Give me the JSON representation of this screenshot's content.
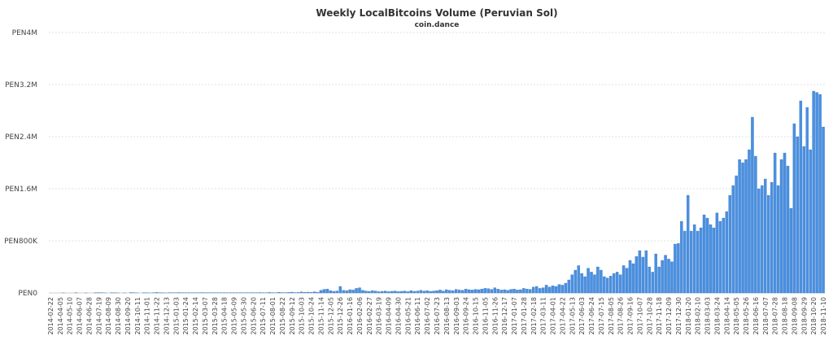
{
  "chart_data": {
    "type": "bar",
    "title": "Weekly LocalBitcoins Volume (Peruvian Sol)",
    "subtitle": "coin.dance",
    "color": "#4a90e2",
    "grid": true,
    "ylim": [
      0,
      4000000
    ],
    "yticks": [
      {
        "value": 0,
        "label": "PEN0"
      },
      {
        "value": 800000,
        "label": "PEN800K"
      },
      {
        "value": 1600000,
        "label": "PEN1.6M"
      },
      {
        "value": 2400000,
        "label": "PEN2.4M"
      },
      {
        "value": 3200000,
        "label": "PEN3.2M"
      },
      {
        "value": 4000000,
        "label": "PEN4M"
      }
    ],
    "categories": [
      "2014-02-22",
      null,
      null,
      "2014-04-05",
      null,
      null,
      "2014-05-10",
      null,
      null,
      "2014-06-07",
      null,
      null,
      "2014-06-28",
      null,
      null,
      "2014-07-19",
      null,
      null,
      "2014-08-09",
      null,
      null,
      "2014-08-30",
      null,
      null,
      "2014-09-20",
      null,
      null,
      "2014-10-11",
      null,
      null,
      "2014-11-01",
      null,
      null,
      "2014-11-22",
      null,
      null,
      "2014-12-13",
      null,
      null,
      "2015-01-03",
      null,
      null,
      "2015-01-24",
      null,
      null,
      "2015-02-14",
      null,
      null,
      "2015-03-07",
      null,
      null,
      "2015-03-28",
      null,
      null,
      "2015-04-18",
      null,
      null,
      "2015-05-09",
      null,
      null,
      "2015-05-30",
      null,
      null,
      "2015-06-20",
      null,
      null,
      "2015-07-11",
      null,
      null,
      "2015-08-01",
      null,
      null,
      "2015-08-22",
      null,
      null,
      "2015-09-12",
      null,
      null,
      "2015-10-03",
      null,
      null,
      "2015-10-24",
      null,
      null,
      "2015-11-14",
      null,
      null,
      "2015-12-05",
      null,
      null,
      "2015-12-26",
      null,
      null,
      "2016-01-16",
      null,
      null,
      "2016-02-06",
      null,
      null,
      "2016-02-27",
      null,
      null,
      "2016-03-19",
      null,
      null,
      "2016-04-09",
      null,
      null,
      "2016-04-30",
      null,
      null,
      "2016-05-21",
      null,
      null,
      "2016-06-11",
      null,
      null,
      "2016-07-02",
      null,
      null,
      "2016-07-23",
      null,
      null,
      "2016-08-13",
      null,
      null,
      "2016-09-03",
      null,
      null,
      "2016-09-24",
      null,
      null,
      "2016-10-15",
      null,
      null,
      "2016-11-05",
      null,
      null,
      "2016-11-26",
      null,
      null,
      "2016-12-17",
      null,
      null,
      "2017-01-07",
      null,
      null,
      "2017-01-28",
      null,
      null,
      "2017-02-18",
      null,
      null,
      "2017-03-11",
      null,
      null,
      "2017-04-01",
      null,
      null,
      "2017-04-22",
      null,
      null,
      "2017-05-13",
      null,
      null,
      "2017-06-03",
      null,
      null,
      "2017-06-24",
      null,
      null,
      "2017-07-15",
      null,
      null,
      "2017-08-05",
      null,
      null,
      "2017-08-26",
      null,
      null,
      "2017-09-16",
      null,
      null,
      "2017-10-07",
      null,
      null,
      "2017-10-28",
      null,
      null,
      "2017-11-18",
      null,
      null,
      "2017-12-09",
      null,
      null,
      "2017-12-30",
      null,
      null,
      "2018-01-20",
      null,
      null,
      "2018-02-10",
      null,
      null,
      "2018-03-03",
      null,
      null,
      "2018-03-24",
      null,
      null,
      "2018-04-14",
      null,
      null,
      "2018-05-05",
      null,
      null,
      "2018-05-26",
      null,
      null,
      "2018-06-16",
      null,
      null,
      "2018-07-07",
      null,
      null,
      "2018-07-28",
      null,
      null,
      "2018-08-18",
      null,
      null,
      "2018-09-08",
      null,
      null,
      "2018-09-29",
      null,
      null,
      "2018-10-20",
      null,
      null,
      "2018-11-10"
    ],
    "values": [
      0,
      0,
      0,
      0,
      1000,
      0,
      0,
      0,
      2000,
      0,
      0,
      1000,
      0,
      0,
      3000,
      5000,
      2000,
      1000,
      0,
      4000,
      2000,
      1000,
      0,
      1000,
      0,
      6000,
      2000,
      1000,
      0,
      3000,
      2000,
      1000,
      4000,
      8000,
      3000,
      2000,
      1000,
      5000,
      3000,
      4000,
      6000,
      2000,
      3000,
      5000,
      2000,
      4000,
      3000,
      6000,
      2000,
      5000,
      3000,
      4000,
      2000,
      3000,
      5000,
      2000,
      4000,
      3000,
      2000,
      5000,
      3000,
      4000,
      2000,
      5000,
      3000,
      6000,
      4000,
      3000,
      8000,
      5000,
      4000,
      10000,
      6000,
      5000,
      8000,
      12000,
      6000,
      8000,
      15000,
      10000,
      12000,
      8000,
      18000,
      10000,
      40000,
      55000,
      60000,
      35000,
      25000,
      30000,
      100000,
      40000,
      35000,
      50000,
      45000,
      70000,
      80000,
      40000,
      30000,
      25000,
      35000,
      30000,
      20000,
      25000,
      30000,
      20000,
      25000,
      30000,
      20000,
      25000,
      30000,
      20000,
      35000,
      25000,
      30000,
      40000,
      30000,
      35000,
      25000,
      30000,
      35000,
      45000,
      30000,
      50000,
      40000,
      35000,
      55000,
      45000,
      40000,
      60000,
      50000,
      45000,
      55000,
      50000,
      60000,
      70000,
      65000,
      55000,
      80000,
      60000,
      45000,
      50000,
      40000,
      55000,
      60000,
      45000,
      50000,
      70000,
      60000,
      55000,
      90000,
      100000,
      70000,
      80000,
      120000,
      90000,
      110000,
      100000,
      130000,
      120000,
      150000,
      200000,
      280000,
      350000,
      420000,
      300000,
      250000,
      380000,
      320000,
      280000,
      400000,
      350000,
      250000,
      230000,
      260000,
      300000,
      320000,
      280000,
      420000,
      380000,
      500000,
      450000,
      560000,
      650000,
      550000,
      650000,
      400000,
      320000,
      600000,
      400000,
      500000,
      580000,
      520000,
      480000,
      750000,
      760000,
      1100000,
      950000,
      1500000,
      950000,
      1050000,
      950000,
      1000000,
      1200000,
      1150000,
      1050000,
      1000000,
      1230000,
      1100000,
      1150000,
      1250000,
      1500000,
      1650000,
      1800000,
      2050000,
      2000000,
      2050000,
      2200000,
      2700000,
      2100000,
      1600000,
      1650000,
      1750000,
      1500000,
      1700000,
      2150000,
      1650000,
      2050000,
      2150000,
      1950000,
      1300000,
      2600000,
      2400000,
      2950000,
      2250000,
      2850000,
      2200000,
      3100000,
      3080000,
      3050000,
      2550000
    ]
  }
}
